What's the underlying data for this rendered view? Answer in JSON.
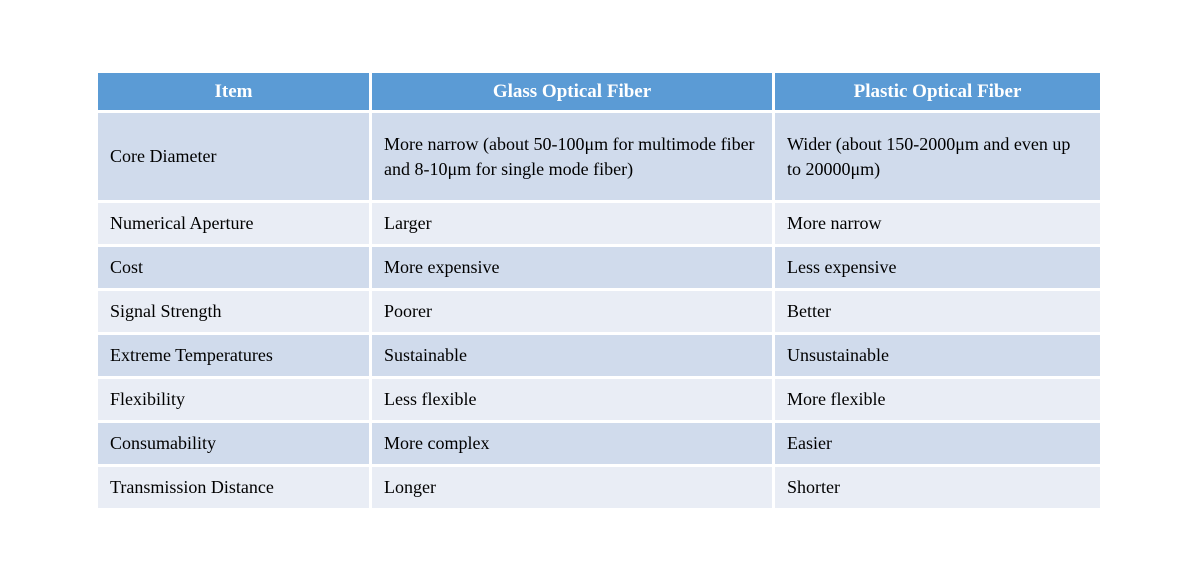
{
  "table": {
    "colors": {
      "header_bg": "#5B9BD5",
      "header_text": "#FFFFFF",
      "band_dark": "#D0DBEC",
      "band_light": "#E9EDF5",
      "body_text": "#000000"
    },
    "headers": {
      "item": "Item",
      "glass": "Glass Optical Fiber",
      "plastic": "Plastic Optical Fiber"
    },
    "rows": [
      {
        "item": "Core Diameter",
        "glass": "More narrow (about 50-100μm for multimode fiber and 8-10μm for single mode fiber)",
        "plastic": "Wider (about 150-2000μm and even up to 20000μm)"
      },
      {
        "item": "Numerical Aperture",
        "glass": "Larger",
        "plastic": "More narrow"
      },
      {
        "item": "Cost",
        "glass": "More expensive",
        "plastic": "Less expensive"
      },
      {
        "item": "Signal Strength",
        "glass": "Poorer",
        "plastic": "Better"
      },
      {
        "item": "Extreme Temperatures",
        "glass": "Sustainable",
        "plastic": "Unsustainable"
      },
      {
        "item": "Flexibility",
        "glass": "Less flexible",
        "plastic": "More flexible"
      },
      {
        "item": "Consumability",
        "glass": "More complex",
        "plastic": "Easier"
      },
      {
        "item": "Transmission Distance",
        "glass": "Longer",
        "plastic": "Shorter"
      }
    ]
  }
}
